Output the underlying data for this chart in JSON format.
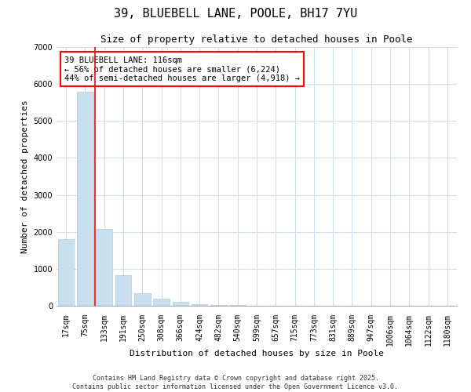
{
  "title": "39, BLUEBELL LANE, POOLE, BH17 7YU",
  "subtitle": "Size of property relative to detached houses in Poole",
  "xlabel": "Distribution of detached houses by size in Poole",
  "ylabel": "Number of detached properties",
  "bar_color": "#c8dff0",
  "bar_edge_color": "#b0cce0",
  "vline_color": "red",
  "vline_x": 1.5,
  "annotation_box_text": "39 BLUEBELL LANE: 116sqm\n← 56% of detached houses are smaller (6,224)\n44% of semi-detached houses are larger (4,918) →",
  "annotation_box_color": "red",
  "annotation_box_facecolor": "white",
  "categories": [
    "17sqm",
    "75sqm",
    "133sqm",
    "191sqm",
    "250sqm",
    "308sqm",
    "366sqm",
    "424sqm",
    "482sqm",
    "540sqm",
    "599sqm",
    "657sqm",
    "715sqm",
    "773sqm",
    "831sqm",
    "889sqm",
    "947sqm",
    "1006sqm",
    "1064sqm",
    "1122sqm",
    "1180sqm"
  ],
  "values": [
    1800,
    5800,
    2075,
    825,
    350,
    200,
    100,
    50,
    30,
    20,
    5,
    3,
    2,
    0,
    0,
    0,
    0,
    0,
    0,
    0,
    0
  ],
  "ylim": [
    0,
    7000
  ],
  "yticks": [
    0,
    1000,
    2000,
    3000,
    4000,
    5000,
    6000,
    7000
  ],
  "background_color": "#ffffff",
  "grid_color": "#d0e0f0",
  "footer_text": "Contains HM Land Registry data © Crown copyright and database right 2025.\nContains public sector information licensed under the Open Government Licence v3.0.",
  "title_fontsize": 11,
  "subtitle_fontsize": 9,
  "axis_label_fontsize": 8,
  "tick_fontsize": 7,
  "footer_fontsize": 6
}
